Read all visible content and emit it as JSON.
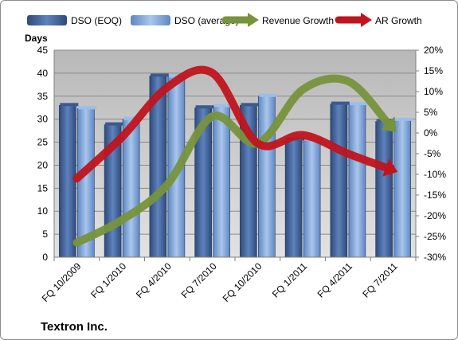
{
  "chart_data": {
    "type": "bar",
    "ylabel": "Days",
    "company_label": "Textron Inc.",
    "categories": [
      "FQ 10/2009",
      "FQ 1/2010",
      "FQ 4/2010",
      "FQ 7/2010",
      "FQ 10/2010",
      "FQ 1/2011",
      "FQ 4/2011",
      "FQ 7/2011"
    ],
    "ylim": [
      0,
      45
    ],
    "y_ticks": [
      "0",
      "5",
      "10",
      "15",
      "20",
      "25",
      "30",
      "35",
      "40",
      "45"
    ],
    "y2lim": [
      -30,
      20
    ],
    "y2_ticks": [
      "-30%",
      "-25%",
      "-20%",
      "-15%",
      "-10%",
      "-5%",
      "0%",
      "5%",
      "10%",
      "15%",
      "20%"
    ],
    "grid": true,
    "legend_position": "top",
    "series": [
      {
        "name": "DSO (EOQ)",
        "kind": "bar",
        "axis": "left",
        "color": "#4F6FA5",
        "values": [
          33.0,
          28.8,
          39.4,
          32.5,
          33.0,
          25.5,
          33.3,
          29.5
        ]
      },
      {
        "name": "DSO (average)",
        "kind": "bar",
        "axis": "left",
        "color": "#8DB3E2",
        "values": [
          32.3,
          30.0,
          39.2,
          32.8,
          35.0,
          25.5,
          33.2,
          29.8
        ]
      },
      {
        "name": "Revenue Growth",
        "kind": "arrow-line",
        "axis": "right",
        "color": "#77933C",
        "values": [
          -26.5,
          -21.0,
          -12.5,
          4.0,
          -2.5,
          10.5,
          12.5,
          1.0
        ]
      },
      {
        "name": "AR Growth",
        "kind": "arrow-line",
        "axis": "right",
        "color": "#C0141E",
        "values": [
          -11.0,
          -1.0,
          11.0,
          14.5,
          -2.5,
          -0.5,
          -5.0,
          -9.0
        ]
      }
    ]
  }
}
